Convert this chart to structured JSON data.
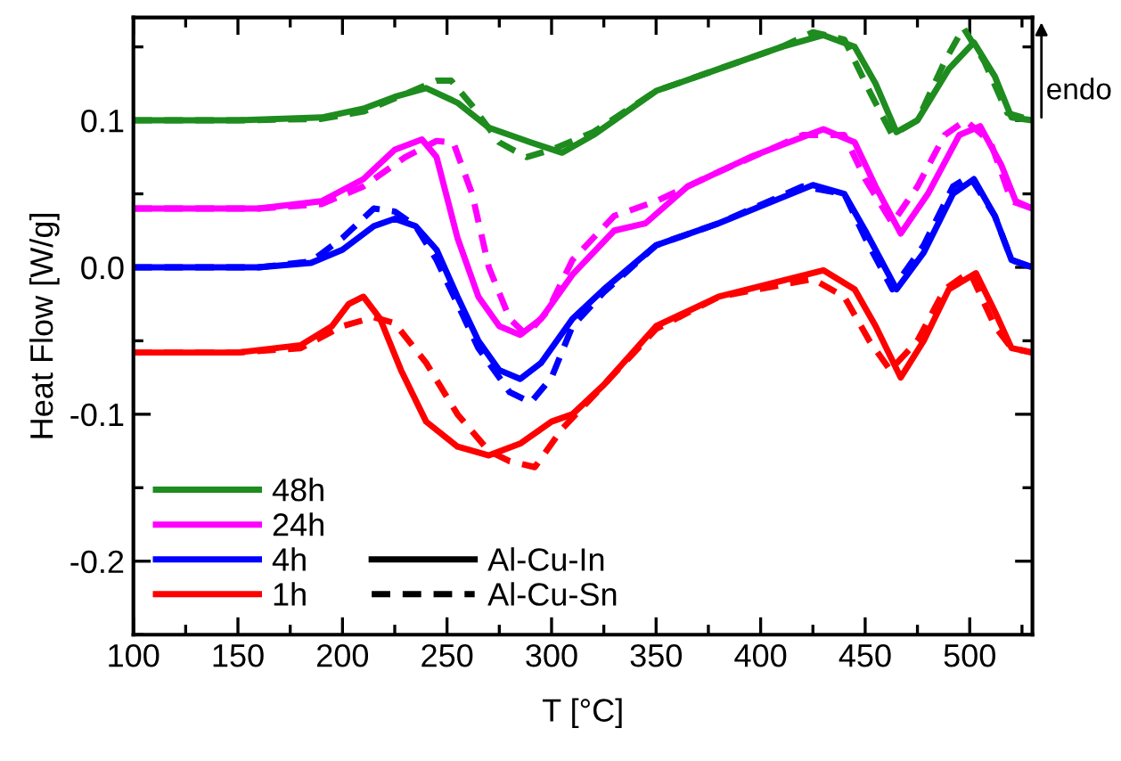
{
  "chart_data": {
    "type": "line",
    "xlabel": "T [°C]",
    "ylabel": "Heat Flow [W/g]",
    "xlim": [
      100,
      530
    ],
    "ylim": [
      -0.25,
      0.17
    ],
    "xticks": [
      100,
      150,
      200,
      250,
      300,
      350,
      400,
      450,
      500
    ],
    "yticks": [
      {
        "value": -0.2,
        "label": "-0.2"
      },
      {
        "value": -0.1,
        "label": "-0.1"
      },
      {
        "value": 0.0,
        "label": "0.0"
      },
      {
        "value": 0.1,
        "label": "0.1"
      }
    ],
    "grid": false,
    "legend": "bottom left",
    "marker": "none",
    "annotations": [
      "endo",
      "Al-Cu-In",
      "Al-Cu-Sn"
    ],
    "series": [
      {
        "name": "48h",
        "color": "#1e8c1e",
        "line_style": "solid",
        "x": [
          100,
          150,
          190,
          210,
          225,
          240,
          255,
          270,
          290,
          305,
          320,
          350,
          380,
          410,
          430,
          445,
          455,
          465,
          475,
          490,
          502,
          512,
          520,
          530
        ],
        "values": [
          0.1,
          0.1,
          0.102,
          0.108,
          0.116,
          0.122,
          0.112,
          0.095,
          0.085,
          0.078,
          0.09,
          0.12,
          0.135,
          0.15,
          0.158,
          0.15,
          0.125,
          0.092,
          0.1,
          0.135,
          0.153,
          0.13,
          0.102,
          0.1
        ]
      },
      {
        "color": "#1e8c1e",
        "line_style": "dashed",
        "x": [
          100,
          150,
          190,
          210,
          230,
          245,
          252,
          262,
          275,
          288,
          300,
          320,
          350,
          380,
          410,
          425,
          440,
          452,
          463,
          475,
          488,
          497,
          507,
          518,
          530
        ],
        "values": [
          0.1,
          0.1,
          0.101,
          0.106,
          0.118,
          0.127,
          0.127,
          0.11,
          0.085,
          0.075,
          0.08,
          0.092,
          0.12,
          0.135,
          0.15,
          0.16,
          0.155,
          0.12,
          0.09,
          0.1,
          0.14,
          0.163,
          0.14,
          0.105,
          0.1
        ]
      },
      {
        "name": "24h",
        "color": "#ff00ff",
        "line_style": "solid",
        "x": [
          100,
          160,
          190,
          210,
          225,
          238,
          245,
          255,
          265,
          275,
          285,
          295,
          310,
          330,
          345,
          365,
          395,
          430,
          445,
          455,
          467,
          480,
          495,
          505,
          515,
          522,
          530
        ],
        "values": [
          0.04,
          0.04,
          0.045,
          0.06,
          0.08,
          0.087,
          0.075,
          0.02,
          -0.02,
          -0.04,
          -0.046,
          -0.035,
          -0.005,
          0.025,
          0.03,
          0.055,
          0.075,
          0.094,
          0.085,
          0.055,
          0.023,
          0.05,
          0.09,
          0.096,
          0.07,
          0.045,
          0.04
        ]
      },
      {
        "color": "#ff00ff",
        "line_style": "dashed",
        "x": [
          100,
          160,
          190,
          210,
          230,
          245,
          253,
          262,
          270,
          280,
          288,
          298,
          310,
          330,
          350,
          380,
          420,
          440,
          450,
          463,
          475,
          488,
          498,
          510,
          520,
          530
        ],
        "values": [
          0.04,
          0.04,
          0.043,
          0.055,
          0.075,
          0.086,
          0.085,
          0.05,
          0.0,
          -0.035,
          -0.046,
          -0.03,
          0.005,
          0.035,
          0.045,
          0.065,
          0.09,
          0.09,
          0.06,
          0.03,
          0.055,
          0.09,
          0.1,
          0.085,
          0.045,
          0.04
        ]
      },
      {
        "name": "4h",
        "color": "#0000ff",
        "line_style": "solid",
        "x": [
          100,
          160,
          185,
          200,
          215,
          225,
          235,
          245,
          255,
          265,
          275,
          285,
          295,
          310,
          325,
          350,
          380,
          425,
          440,
          450,
          465,
          478,
          492,
          502,
          512,
          520,
          530
        ],
        "values": [
          0.0,
          0.0,
          0.003,
          0.012,
          0.028,
          0.033,
          0.028,
          0.012,
          -0.02,
          -0.05,
          -0.07,
          -0.076,
          -0.065,
          -0.035,
          -0.015,
          0.015,
          0.03,
          0.056,
          0.05,
          0.025,
          -0.015,
          0.01,
          0.05,
          0.06,
          0.035,
          0.005,
          0.0
        ]
      },
      {
        "color": "#0000ff",
        "line_style": "dashed",
        "x": [
          100,
          160,
          185,
          200,
          215,
          225,
          235,
          245,
          255,
          265,
          280,
          290,
          300,
          310,
          325,
          350,
          380,
          420,
          440,
          450,
          463,
          478,
          492,
          500,
          512,
          520,
          530
        ],
        "values": [
          0.0,
          0.0,
          0.004,
          0.02,
          0.04,
          0.038,
          0.028,
          0.005,
          -0.025,
          -0.055,
          -0.085,
          -0.092,
          -0.075,
          -0.04,
          -0.017,
          0.015,
          0.03,
          0.055,
          0.05,
          0.02,
          -0.015,
          0.015,
          0.055,
          0.062,
          0.035,
          0.005,
          0.0
        ]
      },
      {
        "name": "1h",
        "color": "#ff0000",
        "line_style": "solid",
        "x": [
          100,
          150,
          180,
          195,
          203,
          210,
          218,
          228,
          240,
          255,
          270,
          285,
          300,
          310,
          325,
          350,
          380,
          430,
          445,
          455,
          467,
          478,
          490,
          503,
          512,
          520,
          530
        ],
        "values": [
          -0.058,
          -0.058,
          -0.053,
          -0.04,
          -0.025,
          -0.02,
          -0.035,
          -0.07,
          -0.105,
          -0.122,
          -0.128,
          -0.12,
          -0.105,
          -0.1,
          -0.08,
          -0.04,
          -0.02,
          -0.002,
          -0.015,
          -0.04,
          -0.075,
          -0.05,
          -0.015,
          -0.004,
          -0.03,
          -0.055,
          -0.058
        ]
      },
      {
        "color": "#ff0000",
        "line_style": "dashed",
        "x": [
          100,
          150,
          180,
          200,
          215,
          225,
          240,
          255,
          270,
          280,
          292,
          305,
          325,
          350,
          380,
          425,
          440,
          452,
          462,
          475,
          488,
          500,
          512,
          520,
          530
        ],
        "values": [
          -0.058,
          -0.058,
          -0.055,
          -0.04,
          -0.034,
          -0.038,
          -0.065,
          -0.1,
          -0.125,
          -0.132,
          -0.136,
          -0.11,
          -0.08,
          -0.042,
          -0.02,
          -0.008,
          -0.02,
          -0.05,
          -0.07,
          -0.05,
          -0.015,
          -0.003,
          -0.04,
          -0.055,
          -0.058
        ]
      }
    ]
  }
}
